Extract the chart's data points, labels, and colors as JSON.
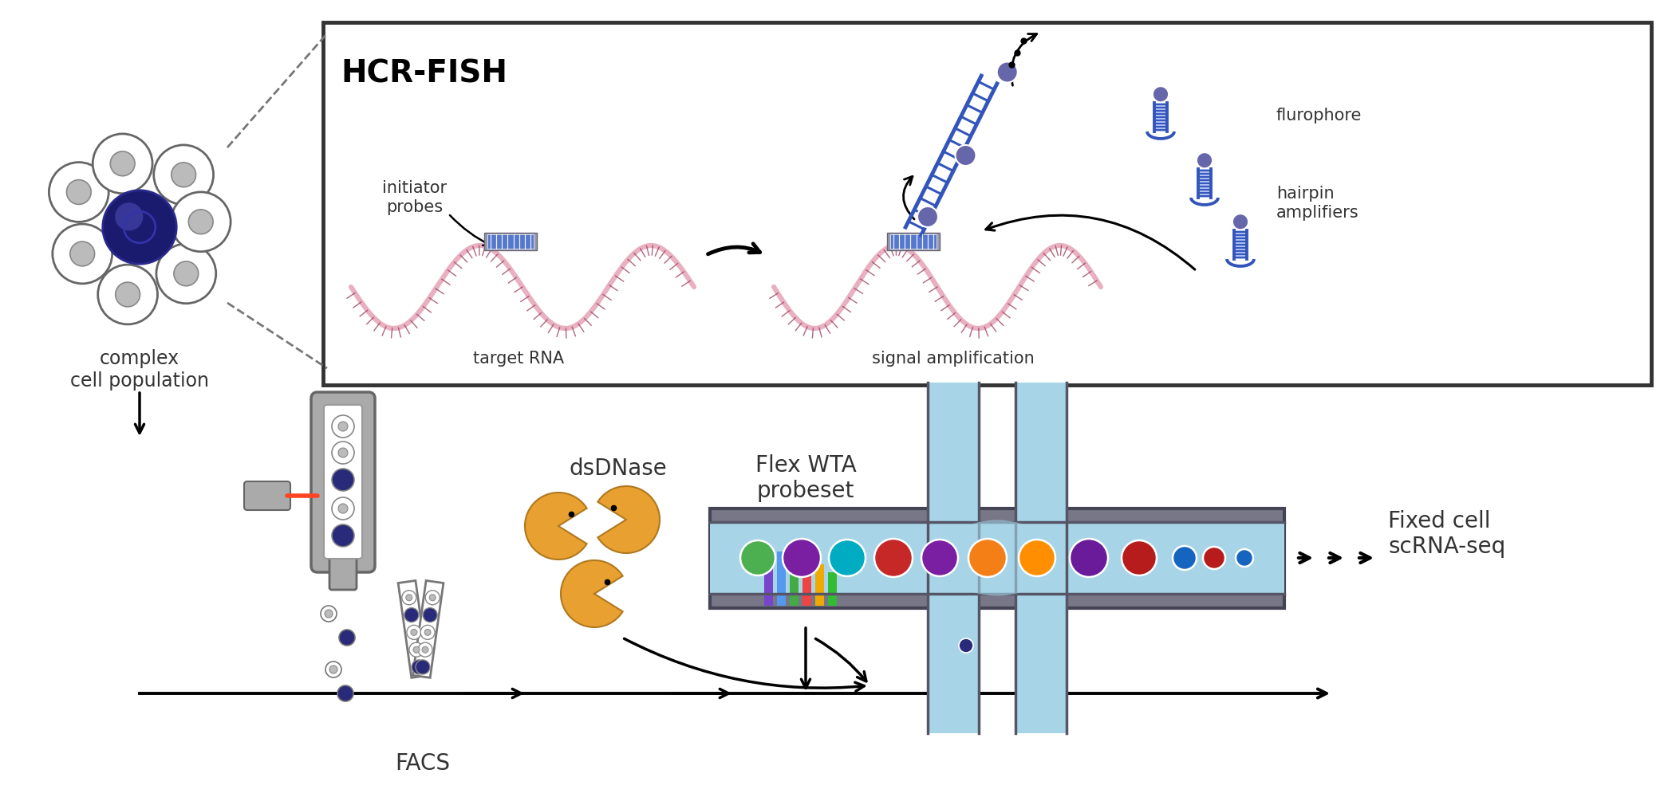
{
  "hcr_label": "HCR-FISH",
  "labels": {
    "complex_cell": "complex\ncell population",
    "initiator_probes": "initiator\nprobes",
    "target_rna": "target RNA",
    "signal_amp": "signal amplification",
    "flurophore": "flurophore",
    "hairpin_amplifiers": "hairpin\namplifiers",
    "facs": "FACS",
    "dsdnase": "dsDNase",
    "flex_wta": "Flex WTA\nprobeset",
    "fixed_cell": "Fixed cell\nscRNA-seq"
  },
  "colors": {
    "background": "#ffffff",
    "rna_pink": "#e8b0c0",
    "rna_dark": "#9b4060",
    "probe_gray": "#888899",
    "probe_blue": "#5577cc",
    "hairpin_blue": "#3355bb",
    "hairpin_fill": "#aabbee",
    "ball_dark_blue": "#2a2a7a",
    "ball_purple": "#6666aa",
    "microfluidic_blue": "#a8d4e8",
    "microfluidic_dark": "#3a5a7a",
    "pacman_orange": "#e8a030",
    "text_dark": "#333333",
    "laser_red": "#ff4422",
    "facs_body": "#aaaaaa",
    "facs_inner": "#dddddd"
  }
}
